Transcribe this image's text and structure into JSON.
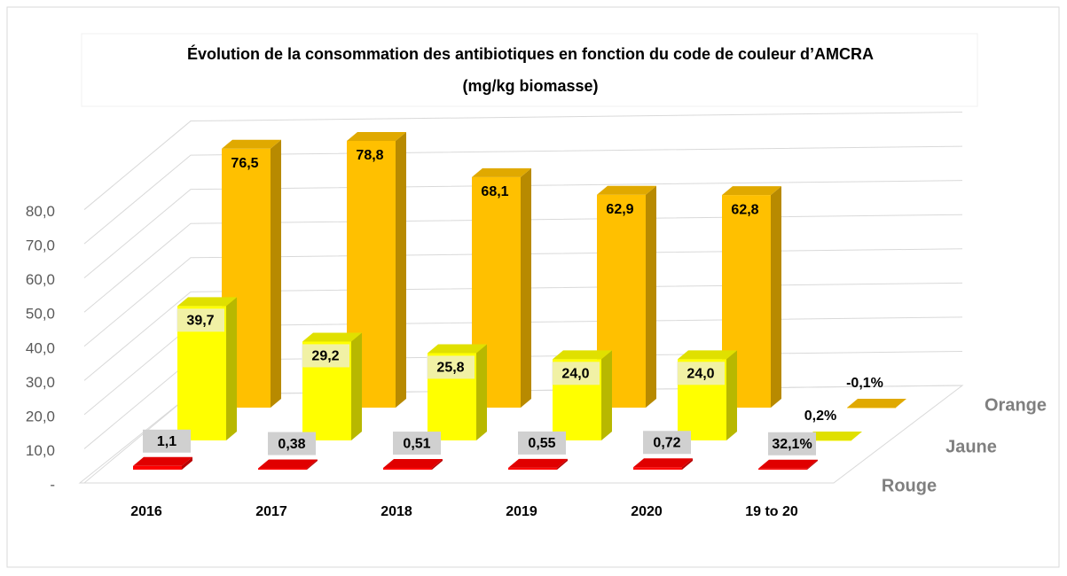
{
  "chart_data": {
    "type": "bar3d",
    "title": "Évolution de la consommation des antibiotiques en fonction du code de couleur d’AMCRA",
    "subtitle": "(mg/kg biomasse)",
    "categories": [
      "2016",
      "2017",
      "2018",
      "2019",
      "2020",
      "19 to 20"
    ],
    "series": [
      {
        "name": "Rouge",
        "color": "#ff0000",
        "values": [
          1.1,
          0.38,
          0.51,
          0.55,
          0.72,
          0.321
        ],
        "value_labels": [
          "1,1",
          "0,38",
          "0,51",
          "0,55",
          "0,72",
          "32,1%"
        ]
      },
      {
        "name": "Jaune",
        "color": "#ffff00",
        "values": [
          39.7,
          29.2,
          25.8,
          24.0,
          24.0,
          0.002
        ],
        "value_labels": [
          "39,7",
          "29,2",
          "25,8",
          "24,0",
          "24,0",
          "0,2%"
        ]
      },
      {
        "name": "Orange",
        "color": "#ffc000",
        "values": [
          76.5,
          78.8,
          68.1,
          62.9,
          62.8,
          -0.001
        ],
        "value_labels": [
          "76,5",
          "78,8",
          "68,1",
          "62,9",
          "62,8",
          "-0,1%"
        ]
      }
    ],
    "ylim": [
      0,
      90
    ],
    "yticks": [
      {
        "value": 0,
        "label": "-"
      },
      {
        "value": 10,
        "label": "10,0"
      },
      {
        "value": 20,
        "label": "20,0"
      },
      {
        "value": 30,
        "label": "30,0"
      },
      {
        "value": 40,
        "label": "40,0"
      },
      {
        "value": 50,
        "label": "50,0"
      },
      {
        "value": 60,
        "label": "60,0"
      },
      {
        "value": 70,
        "label": "70,0"
      },
      {
        "value": 80,
        "label": "80,0"
      }
    ],
    "grid": true
  }
}
